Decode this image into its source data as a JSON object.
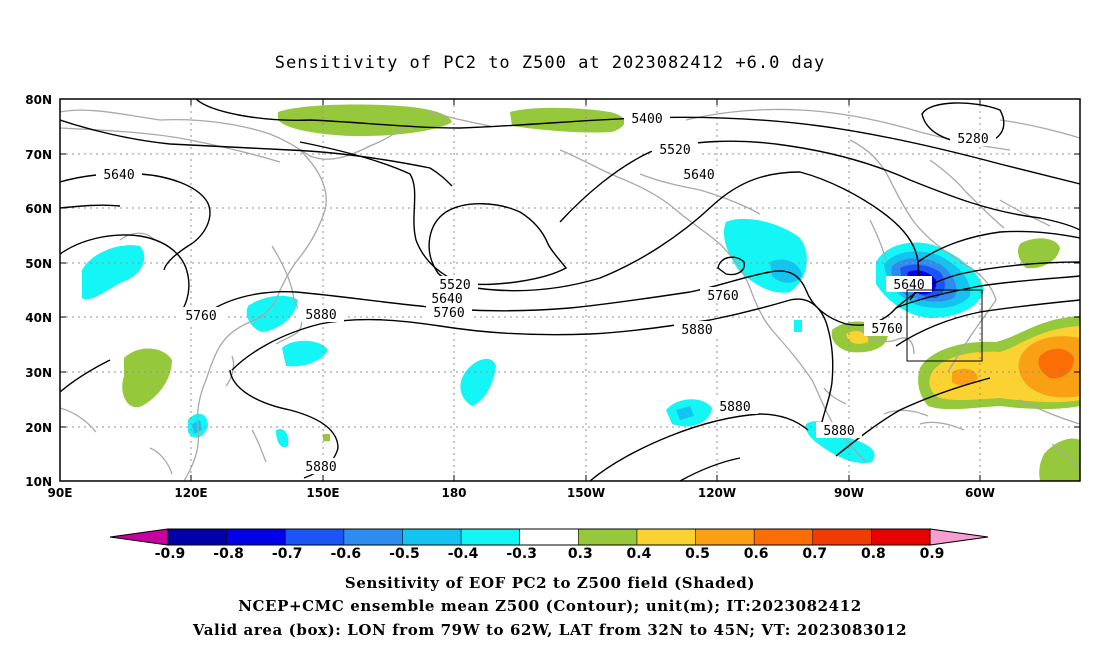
{
  "title": "Sensitivity of PC2 to Z500 at 2023082412 +6.0 day",
  "map": {
    "lat_ticks": [
      "80N",
      "70N",
      "60N",
      "50N",
      "40N",
      "30N",
      "20N",
      "10N"
    ],
    "lon_ticks": [
      "90E",
      "120E",
      "150E",
      "180",
      "150W",
      "120W",
      "90W",
      "60W"
    ],
    "lon_range": [
      90,
      323
    ],
    "lat_range": [
      10,
      80
    ],
    "contour_color": "#000000",
    "coast_color": "#a8a8a8",
    "grid_style": "dotted"
  },
  "contour_labels": [
    "5400",
    "5280",
    "5520",
    "5640",
    "5640",
    "5760",
    "5880",
    "5520",
    "5640",
    "5760",
    "5760",
    "5880",
    "5640",
    "5760",
    "5880",
    "5880",
    "5880",
    "5760",
    "5880"
  ],
  "colorbar": {
    "labels": [
      "-0.9",
      "-0.8",
      "-0.7",
      "-0.6",
      "-0.5",
      "-0.4",
      "-0.3",
      "0.3",
      "0.4",
      "0.5",
      "0.6",
      "0.7",
      "0.8",
      "0.9"
    ],
    "colors": [
      "#c8009e",
      "#0000a8",
      "#0000e8",
      "#1c55f5",
      "#2e8bf0",
      "#14c4f0",
      "#14f5f5",
      "#ffffff",
      "#96c83c",
      "#fad232",
      "#faa014",
      "#fa6e05",
      "#f03c00",
      "#e80000",
      "#f59ed2"
    ]
  },
  "box": {
    "lon_from": "79W",
    "lon_to": "62W",
    "lat_from": "32N",
    "lat_to": "45N"
  },
  "captions": [
    "Sensitivity of EOF PC2 to Z500 field (Shaded)",
    "NCEP+CMC ensemble mean Z500 (Contour); unit(m); IT:2023082412",
    "Valid area (box): LON from 79W to 62W, LAT from 32N to 45N; VT: 2023083012"
  ]
}
